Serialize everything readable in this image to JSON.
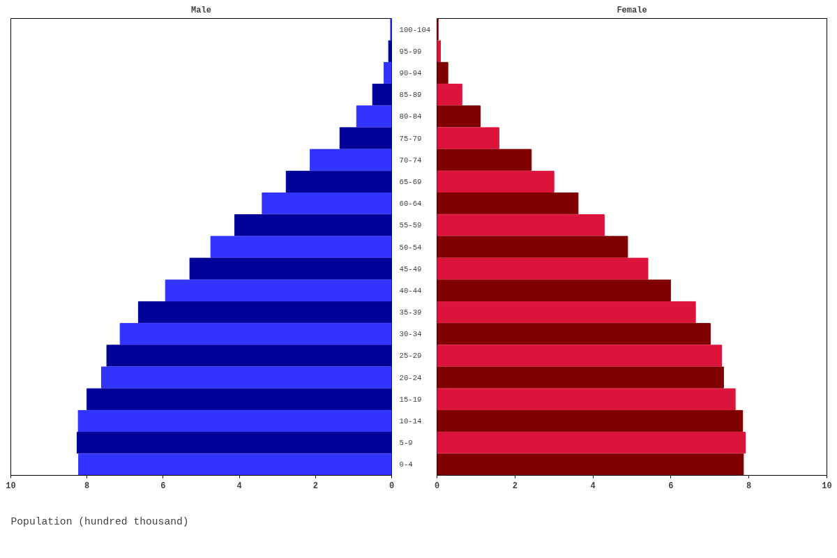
{
  "chart_data": [
    {
      "type": "bar",
      "orientation": "horizontal",
      "title": "Male",
      "xlabel": "Population (hundred thousand)",
      "categories": [
        "100-104",
        "95-99",
        "90-94",
        "85-89",
        "80-84",
        "75-79",
        "70-74",
        "65-69",
        "60-64",
        "55-59",
        "50-54",
        "45-49",
        "40-44",
        "35-39",
        "30-34",
        "25-29",
        "20-24",
        "15-19",
        "10-14",
        "5-9",
        "0-4"
      ],
      "values": [
        0.03,
        0.08,
        0.2,
        0.5,
        0.92,
        1.36,
        2.14,
        2.77,
        3.4,
        4.12,
        4.75,
        5.3,
        5.94,
        6.65,
        7.13,
        7.48,
        7.62,
        8.0,
        8.23,
        8.26,
        8.22
      ],
      "colors": [
        "#3333ff",
        "#000099",
        "#3333ff",
        "#000099",
        "#3333ff",
        "#000099",
        "#3333ff",
        "#000099",
        "#3333ff",
        "#000099",
        "#3333ff",
        "#000099",
        "#3333ff",
        "#000099",
        "#3333ff",
        "#000099",
        "#3333ff",
        "#000099",
        "#3333ff",
        "#000099",
        "#3333ff"
      ],
      "xlim": [
        10,
        0
      ],
      "xticks": [
        10,
        8,
        6,
        4,
        2,
        0
      ],
      "grid": false
    },
    {
      "type": "bar",
      "orientation": "horizontal",
      "title": "Female",
      "categories": [
        null,
        null,
        null,
        null,
        null,
        null,
        null,
        null,
        null,
        null,
        null,
        null,
        null,
        null,
        null,
        null,
        null,
        null,
        null,
        null,
        null
      ],
      "values": [
        0.03,
        0.09,
        0.28,
        0.64,
        1.11,
        1.59,
        2.42,
        3.0,
        3.62,
        4.29,
        4.89,
        5.41,
        5.99,
        6.63,
        7.01,
        7.3,
        7.35,
        7.65,
        7.84,
        7.91,
        7.86
      ],
      "colors": [
        "#800000",
        "#dc143c",
        "#800000",
        "#dc143c",
        "#800000",
        "#dc143c",
        "#800000",
        "#dc143c",
        "#800000",
        "#dc143c",
        "#800000",
        "#dc143c",
        "#800000",
        "#dc143c",
        "#800000",
        "#dc143c",
        "#800000",
        "#dc143c",
        "#800000",
        "#dc143c",
        "#800000"
      ],
      "xlim": [
        0,
        10
      ],
      "xticks": [
        0,
        2,
        4,
        6,
        8,
        10
      ],
      "grid": false
    }
  ]
}
